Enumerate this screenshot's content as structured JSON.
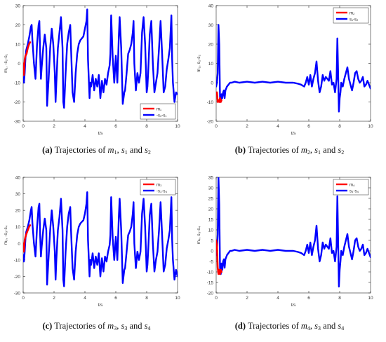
{
  "colors": {
    "m_series": "#ff0000",
    "s_series": "#0000ff",
    "axis": "#262626",
    "grid": "#d9d9d9"
  },
  "panels": [
    {
      "chart_data": {
        "type": "line",
        "xlabel": "t/s",
        "ylabel": "m₁, -s₂-s₁",
        "xlim": [
          0,
          10
        ],
        "ylim": [
          -30,
          30
        ],
        "xticks": [
          0,
          2,
          4,
          6,
          8,
          10
        ],
        "yticks": [
          -30,
          -20,
          -10,
          0,
          10,
          20,
          30
        ],
        "legend_position": "bottom-right",
        "series": [
          {
            "name": "m₁",
            "color": "#ff0000",
            "x": [
              0,
              0.05,
              0.1,
              0.15,
              0.22,
              0.3,
              0.38,
              0.45
            ],
            "y": [
              0,
              -6,
              2,
              4,
              5,
              8,
              10,
              11
            ]
          },
          {
            "name": "-s₂-s₁",
            "color": "#0000ff",
            "x": [
              0,
              0.05,
              0.1,
              0.15,
              0.2,
              0.3,
              0.4,
              0.5,
              0.55,
              0.6,
              0.7,
              0.8,
              0.9,
              1.0,
              1.05,
              1.1,
              1.15,
              1.2,
              1.3,
              1.4,
              1.5,
              1.55,
              1.65,
              1.75,
              1.85,
              1.95,
              2.05,
              2.1,
              2.15,
              2.25,
              2.35,
              2.45,
              2.55,
              2.6,
              2.65,
              2.75,
              2.85,
              2.95,
              3.05,
              3.1,
              3.2,
              3.3,
              3.4,
              3.5,
              3.6,
              3.7,
              3.8,
              3.9,
              4.0,
              4.1,
              4.15,
              4.2,
              4.3,
              4.35,
              4.4,
              4.5,
              4.6,
              4.7,
              4.8,
              4.9,
              5.0,
              5.1,
              5.2,
              5.3,
              5.4,
              5.5,
              5.6,
              5.65,
              5.7,
              5.8,
              5.9,
              6.0,
              6.1,
              6.2,
              6.25,
              6.35,
              6.45,
              6.55,
              6.6,
              6.7,
              6.8,
              6.9,
              7.0,
              7.1,
              7.15,
              7.2,
              7.3,
              7.4,
              7.5,
              7.6,
              7.7,
              7.8,
              7.9,
              8.0,
              8.05,
              8.1,
              8.2,
              8.3,
              8.4,
              8.5,
              8.6,
              8.7,
              8.8,
              8.9,
              9.0,
              9.1,
              9.2,
              9.3,
              9.4,
              9.5,
              9.6,
              9.65,
              9.7,
              9.8,
              9.9,
              10.0
            ],
            "y": [
              -7,
              -10,
              -5,
              3,
              7,
              10,
              14,
              19,
              20,
              12,
              0,
              -8,
              10,
              20,
              22,
              5,
              -8,
              -2,
              8,
              15,
              8,
              -22,
              -8,
              8,
              18,
              10,
              -5,
              -20,
              -10,
              8,
              16,
              24,
              8,
              -20,
              -23,
              -5,
              10,
              16,
              20,
              8,
              -15,
              -20,
              -5,
              5,
              10,
              12,
              13,
              14,
              18,
              22,
              28,
              2,
              -18,
              -10,
              -12,
              -6,
              -14,
              -8,
              -12,
              -6,
              -18,
              -9,
              -15,
              -8,
              -11,
              -5,
              -1,
              5,
              25,
              3,
              -10,
              4,
              -10,
              15,
              24,
              8,
              -21,
              -15,
              -14,
              -5,
              5,
              7,
              10,
              16,
              22,
              0,
              -14,
              -5,
              -10,
              -5,
              16,
              24,
              10,
              -15,
              -12,
              -4,
              15,
              22,
              0,
              -15,
              -10,
              -5,
              8,
              22,
              5,
              -15,
              -12,
              -3,
              2,
              8,
              25,
              2,
              -10,
              -20,
              -15,
              -16
            ]
          }
        ]
      },
      "caption": {
        "letter": "(a)",
        "text": "Trajectories of ",
        "var1": "m",
        "sub1": "1",
        "sep1": ", ",
        "var2": "s",
        "sub2": "1",
        "sep2": " and ",
        "var3": "s",
        "sub3": "2"
      }
    },
    {
      "chart_data": {
        "type": "line",
        "xlabel": "t/s",
        "ylabel": "m₂, s₁-s₂",
        "xlim": [
          0,
          10
        ],
        "ylim": [
          -20,
          40
        ],
        "xticks": [
          0,
          2,
          4,
          6,
          8,
          10
        ],
        "yticks": [
          -20,
          -10,
          0,
          10,
          20,
          30,
          40
        ],
        "legend_position": "top-right",
        "series": [
          {
            "name": "m₂",
            "color": "#ff0000",
            "x": [
              0.05,
              0.1,
              0.15,
              0.2,
              0.25,
              0.3,
              0.35
            ],
            "y": [
              -5,
              -10,
              -9,
              -10,
              -8,
              -10,
              -9
            ]
          },
          {
            "name": "s₁-s₂",
            "color": "#0000ff",
            "x": [
              0,
              0.05,
              0.1,
              0.15,
              0.2,
              0.25,
              0.3,
              0.35,
              0.4,
              0.45,
              0.5,
              0.55,
              0.6,
              0.7,
              0.8,
              0.9,
              1.0,
              1.2,
              1.5,
              2.0,
              2.5,
              3.0,
              3.5,
              4.0,
              4.5,
              5.0,
              5.3,
              5.5,
              5.7,
              5.8,
              5.9,
              6.0,
              6.1,
              6.2,
              6.3,
              6.4,
              6.5,
              6.6,
              6.7,
              6.8,
              6.9,
              7.0,
              7.1,
              7.2,
              7.3,
              7.4,
              7.5,
              7.6,
              7.7,
              7.8,
              7.85,
              7.9,
              7.95,
              8.0,
              8.05,
              8.1,
              8.2,
              8.3,
              8.4,
              8.5,
              8.6,
              8.7,
              8.8,
              8.9,
              9.0,
              9.1,
              9.2,
              9.3,
              9.4,
              9.5,
              9.6,
              9.7,
              9.8,
              9.9,
              10.0
            ],
            "y": [
              -2,
              0,
              5,
              30,
              20,
              -8,
              -10,
              -6,
              -8,
              -5,
              -4,
              -8,
              -4,
              -2,
              -1,
              0,
              0,
              0.5,
              0,
              0.5,
              0,
              0.5,
              0,
              0.5,
              0,
              0,
              -0.5,
              -1,
              -2,
              0,
              3,
              -1,
              4,
              -2,
              2,
              5,
              11,
              1,
              -5,
              -2,
              4,
              1,
              3,
              2,
              1,
              6,
              -1,
              0,
              -5,
              2,
              23,
              5,
              -15,
              -8,
              -5,
              0,
              -2,
              2,
              5,
              8,
              2,
              -1,
              -4,
              0,
              5,
              6,
              2,
              0,
              1,
              3,
              -2,
              -1,
              1,
              -1,
              -3
            ]
          }
        ]
      },
      "caption": {
        "letter": "(b)",
        "text": "Trajectories of ",
        "var1": "m",
        "sub1": "2",
        "sep1": ", ",
        "var2": "s",
        "sub2": "1",
        "sep2": " and ",
        "var3": "s",
        "sub3": "2"
      }
    },
    {
      "chart_data": {
        "type": "line",
        "xlabel": "t/s",
        "ylabel": "m₃, -s₃-s₄",
        "xlim": [
          0,
          10
        ],
        "ylim": [
          -30,
          40
        ],
        "xticks": [
          0,
          2,
          4,
          6,
          8,
          10
        ],
        "yticks": [
          -30,
          -20,
          -10,
          0,
          10,
          20,
          30,
          40
        ],
        "legend_position": "top-right",
        "series": [
          {
            "name": "m₃",
            "color": "#ff0000",
            "x": [
              0,
              0.05,
              0.1,
              0.15,
              0.22,
              0.3,
              0.38,
              0.45
            ],
            "y": [
              0,
              -5,
              2,
              4,
              6,
              8,
              10,
              11
            ]
          },
          {
            "name": "-s₃-s₄",
            "color": "#0000ff",
            "x": [
              0,
              0.05,
              0.1,
              0.15,
              0.2,
              0.3,
              0.4,
              0.5,
              0.55,
              0.6,
              0.7,
              0.8,
              0.9,
              1.0,
              1.05,
              1.1,
              1.15,
              1.2,
              1.3,
              1.4,
              1.5,
              1.55,
              1.65,
              1.75,
              1.85,
              1.95,
              2.05,
              2.1,
              2.15,
              2.25,
              2.35,
              2.45,
              2.55,
              2.6,
              2.65,
              2.75,
              2.85,
              2.95,
              3.05,
              3.1,
              3.2,
              3.3,
              3.4,
              3.5,
              3.6,
              3.7,
              3.8,
              3.9,
              4.0,
              4.1,
              4.15,
              4.2,
              4.3,
              4.35,
              4.4,
              4.5,
              4.6,
              4.7,
              4.8,
              4.9,
              5.0,
              5.1,
              5.2,
              5.3,
              5.4,
              5.5,
              5.6,
              5.65,
              5.7,
              5.8,
              5.9,
              6.0,
              6.1,
              6.2,
              6.25,
              6.35,
              6.45,
              6.55,
              6.6,
              6.7,
              6.8,
              6.9,
              7.0,
              7.1,
              7.15,
              7.2,
              7.3,
              7.4,
              7.5,
              7.6,
              7.7,
              7.8,
              7.9,
              8.0,
              8.05,
              8.1,
              8.2,
              8.3,
              8.4,
              8.5,
              8.6,
              8.7,
              8.8,
              8.9,
              9.0,
              9.1,
              9.2,
              9.3,
              9.4,
              9.5,
              9.6,
              9.65,
              9.7,
              9.8,
              9.9,
              10.0
            ],
            "y": [
              -7,
              -11,
              -5,
              3,
              7,
              10,
              14,
              20,
              22,
              12,
              0,
              -8,
              10,
              22,
              24,
              5,
              -8,
              -2,
              8,
              15,
              8,
              -25,
              -8,
              8,
              20,
              10,
              -5,
              -22,
              -10,
              8,
              16,
              27,
              8,
              -22,
              -26,
              -5,
              10,
              18,
              22,
              8,
              -15,
              -22,
              -5,
              5,
              10,
              12,
              13,
              14,
              18,
              24,
              31,
              2,
              -20,
              -10,
              -13,
              -6,
              -15,
              -8,
              -13,
              -6,
              -20,
              -9,
              -17,
              -8,
              -11,
              -5,
              -1,
              5,
              28,
              3,
              -10,
              4,
              -10,
              17,
              27,
              8,
              -24,
              -16,
              -15,
              -5,
              5,
              7,
              10,
              18,
              25,
              0,
              -15,
              -5,
              -10,
              -5,
              18,
              27,
              10,
              -17,
              -13,
              -4,
              17,
              24,
              0,
              -17,
              -10,
              -5,
              8,
              25,
              5,
              -17,
              -13,
              -3,
              2,
              8,
              28,
              2,
              -10,
              -22,
              -16,
              -20
            ]
          }
        ]
      },
      "caption": {
        "letter": "(c)",
        "text": "Trajectories of ",
        "var1": "m",
        "sub1": "3",
        "sep1": ", ",
        "var2": "s",
        "sub2": "3",
        "sep2": " and ",
        "var3": "s",
        "sub3": "4"
      }
    },
    {
      "chart_data": {
        "type": "line",
        "xlabel": "t/s",
        "ylabel": "m₄, s₃-s₄",
        "xlim": [
          0,
          10
        ],
        "ylim": [
          -20,
          35
        ],
        "xticks": [
          0,
          2,
          4,
          6,
          8,
          10
        ],
        "yticks": [
          -20,
          -15,
          -10,
          -5,
          0,
          5,
          10,
          15,
          20,
          25,
          30,
          35
        ],
        "legend_position": "top-right",
        "series": [
          {
            "name": "m₄",
            "color": "#ff0000",
            "x": [
              0,
              0.05,
              0.1,
              0.15,
              0.2,
              0.25,
              0.3,
              0.35
            ],
            "y": [
              5,
              3,
              -8,
              -11,
              -9,
              -11,
              -9,
              -10
            ]
          },
          {
            "name": "s₃-s₄",
            "color": "#0000ff",
            "x": [
              0,
              0.05,
              0.1,
              0.15,
              0.2,
              0.25,
              0.3,
              0.35,
              0.4,
              0.45,
              0.5,
              0.55,
              0.6,
              0.7,
              0.8,
              0.9,
              1.0,
              1.2,
              1.5,
              2.0,
              2.5,
              3.0,
              3.5,
              4.0,
              4.5,
              5.0,
              5.3,
              5.5,
              5.7,
              5.8,
              5.9,
              6.0,
              6.1,
              6.2,
              6.3,
              6.4,
              6.5,
              6.6,
              6.7,
              6.8,
              6.9,
              7.0,
              7.1,
              7.2,
              7.3,
              7.4,
              7.5,
              7.6,
              7.7,
              7.8,
              7.85,
              7.9,
              7.95,
              8.0,
              8.05,
              8.1,
              8.2,
              8.3,
              8.4,
              8.5,
              8.6,
              8.7,
              8.8,
              8.9,
              9.0,
              9.1,
              9.2,
              9.3,
              9.4,
              9.5,
              9.6,
              9.7,
              9.8,
              9.9,
              10.0
            ],
            "y": [
              -2,
              0,
              8,
              35,
              22,
              -8,
              -11,
              -6,
              -9,
              -5,
              -4,
              -8,
              -4,
              -2,
              -1,
              0,
              0,
              0.5,
              0,
              0.5,
              0,
              0.5,
              0,
              0.5,
              0,
              0,
              -0.5,
              -1,
              -2,
              0,
              3,
              -1,
              4,
              -2,
              2,
              5,
              12,
              1,
              -5,
              -2,
              4,
              1,
              3,
              2,
              1,
              6,
              -1,
              0,
              -5,
              2,
              26,
              5,
              -17,
              -9,
              -5,
              0,
              -2,
              2,
              5,
              8,
              2,
              -1,
              -4,
              0,
              5,
              6,
              2,
              0,
              1,
              3,
              -2,
              -1,
              1,
              -1,
              -3
            ]
          }
        ]
      },
      "caption": {
        "letter": "(d)",
        "text": "Trajectories of ",
        "var1": "m",
        "sub1": "4",
        "sep1": ", ",
        "var2": "s",
        "sub2": "3",
        "sep2": " and ",
        "var3": "s",
        "sub3": "4"
      }
    }
  ]
}
